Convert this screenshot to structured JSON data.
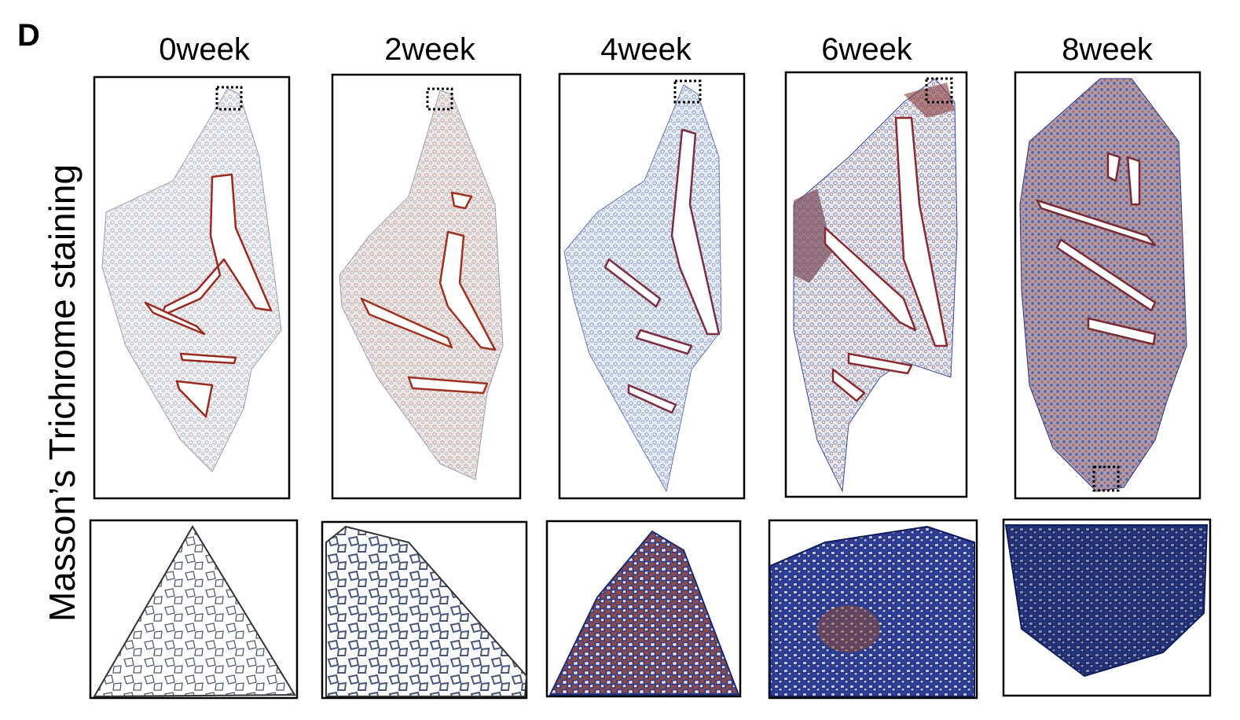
{
  "panel_label": "D",
  "row_label": "Masson’s Trichrome staining",
  "columns": [
    {
      "title": "0week"
    },
    {
      "title": "2week"
    },
    {
      "title": "4week"
    },
    {
      "title": "6week"
    },
    {
      "title": "8week"
    }
  ]
}
